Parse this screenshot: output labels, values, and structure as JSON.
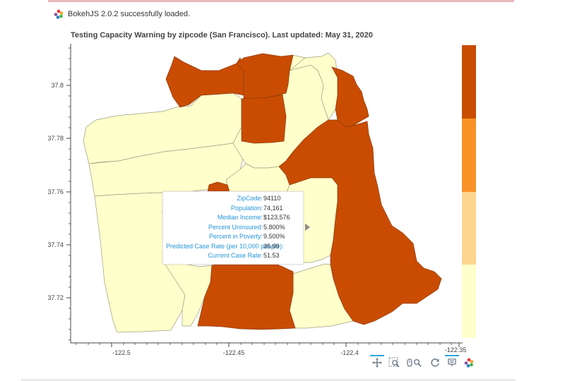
{
  "banner": {
    "text": "BokehJS 2.0.2 successfully loaded."
  },
  "plot": {
    "title": "Testing Capacity Warning by zipcode (San Francisco). Last updated: May 31, 2020",
    "x_ticks": [
      "-122.5",
      "-122.45",
      "-122.4",
      "-122.35"
    ],
    "y_ticks": [
      "37.8",
      "37.78",
      "37.76",
      "37.74",
      "37.72"
    ],
    "colors": {
      "high": "#c94c02",
      "elevated": "#f89227",
      "moderate": "#fdd58e",
      "low": "#ffffcc"
    }
  },
  "colorbar": {
    "colors": [
      "#c94c02",
      "#f89227",
      "#fdd58e",
      "#ffffcc"
    ]
  },
  "tooltip": {
    "rows": [
      {
        "label": "ZipCode:",
        "value": "94110"
      },
      {
        "label": "Population:",
        "value": "74,161"
      },
      {
        "label": "Median Income:",
        "value": "$123,576"
      },
      {
        "label": "Percent Uninsured:",
        "value": "5.800%"
      },
      {
        "label": "Percent in Poverty:",
        "value": "9.500%"
      },
      {
        "label": "Predicted Case Rate (per 10,000 people):",
        "value": "35.99"
      },
      {
        "label": "Current Case Rate:",
        "value": "51.53"
      }
    ]
  },
  "toolbar": {
    "tools": [
      {
        "name": "pan-tool",
        "icon": "move-icon",
        "active": true
      },
      {
        "name": "box-zoom-tool",
        "icon": "box-zoom-icon",
        "active": false
      },
      {
        "name": "wheel-zoom-tool",
        "icon": "wheel-zoom-icon",
        "active": false
      },
      {
        "name": "reset-tool",
        "icon": "reset-icon",
        "active": false
      },
      {
        "name": "hover-tool",
        "icon": "hover-icon",
        "active": true
      },
      {
        "name": "bokeh-logo",
        "icon": "bokeh-logo-icon",
        "active": false
      }
    ]
  }
}
